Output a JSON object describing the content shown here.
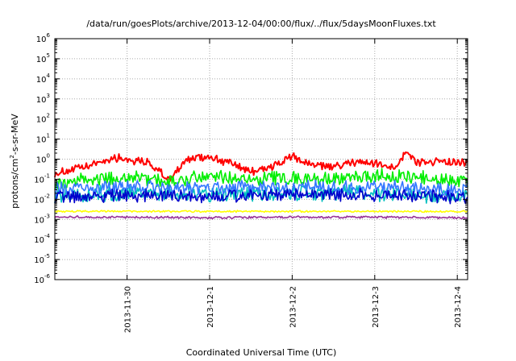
{
  "chart_data": {
    "type": "line",
    "title": "/data/run/goesPlots/archive/2013-12-04/00:00/flux/../flux/5daysMoonFluxes.txt",
    "xlabel": "Coordinated Universal Time (UTC)",
    "ylabel": {
      "base": "protons/cm",
      "sup": "2",
      "rest": "-s-sr-MeV"
    },
    "y_scale": "log",
    "ylim": [
      1e-06,
      1000000.0
    ],
    "y_ticks": [
      {
        "base": "10",
        "exp": "6"
      },
      {
        "base": "10",
        "exp": "5"
      },
      {
        "base": "10",
        "exp": "4"
      },
      {
        "base": "10",
        "exp": "3"
      },
      {
        "base": "10",
        "exp": "2"
      },
      {
        "base": "10",
        "exp": "1"
      },
      {
        "base": "10",
        "exp": "0"
      },
      {
        "base": "10",
        "exp": "-1"
      },
      {
        "base": "10",
        "exp": "-2"
      },
      {
        "base": "10",
        "exp": "-3"
      },
      {
        "base": "10",
        "exp": "-4"
      },
      {
        "base": "10",
        "exp": "-5"
      },
      {
        "base": "10",
        "exp": "-6"
      }
    ],
    "xlim": [
      "2013-11-29T03:00",
      "2013-12-04T03:00"
    ],
    "x_ticks": [
      "2013-11-30",
      "2013-12-1",
      "2013-12-2",
      "2013-12-3",
      "2013-12-4"
    ],
    "grid": "dotted",
    "series": [
      {
        "color": "#ff0000",
        "x": [
          "2013-11-29T03:00",
          "2013-11-29T12:00",
          "2013-11-29T20:00",
          "2013-11-30T00:00",
          "2013-11-30T06:00",
          "2013-11-30T12:00",
          "2013-11-30T18:00",
          "2013-12-01T00:00",
          "2013-12-01T06:00",
          "2013-12-01T12:00",
          "2013-12-01T18:00",
          "2013-12-02T00:00",
          "2013-12-02T06:00",
          "2013-12-02T12:00",
          "2013-12-02T18:00",
          "2013-12-03T00:00",
          "2013-12-03T06:00",
          "2013-12-03T09:00",
          "2013-12-03T12:00",
          "2013-12-03T18:00",
          "2013-12-04T03:00"
        ],
        "values": [
          0.2,
          0.4,
          1.2,
          1.0,
          0.7,
          0.1,
          1.0,
          1.4,
          0.6,
          0.25,
          0.4,
          1.3,
          0.5,
          0.4,
          0.7,
          0.6,
          0.4,
          2.5,
          0.7,
          0.8,
          0.6
        ]
      },
      {
        "color": "#00ee00",
        "x": [
          "2013-11-29T03:00",
          "2013-11-29T12:00",
          "2013-11-30T00:00",
          "2013-11-30T12:00",
          "2013-12-01T00:00",
          "2013-12-01T12:00",
          "2013-12-02T00:00",
          "2013-12-02T12:00",
          "2013-12-03T00:00",
          "2013-12-03T12:00",
          "2013-12-04T03:00"
        ],
        "values": [
          0.05,
          0.1,
          0.12,
          0.08,
          0.15,
          0.1,
          0.12,
          0.1,
          0.15,
          0.12,
          0.08
        ]
      },
      {
        "color": "#00c0c0",
        "x": [
          "2013-11-29T03:00",
          "2013-11-30T00:00",
          "2013-12-01T00:00",
          "2013-12-02T00:00",
          "2013-12-03T00:00",
          "2013-12-04T03:00"
        ],
        "values": [
          0.015,
          0.02,
          0.018,
          0.02,
          0.02,
          0.015
        ]
      },
      {
        "color": "#3377ff",
        "x": [
          "2013-11-29T03:00",
          "2013-11-30T00:00",
          "2013-12-01T00:00",
          "2013-12-02T00:00",
          "2013-12-03T00:00",
          "2013-12-04T03:00"
        ],
        "values": [
          0.03,
          0.04,
          0.035,
          0.04,
          0.04,
          0.03
        ]
      },
      {
        "color": "#0000cc",
        "x": [
          "2013-11-29T03:00",
          "2013-11-30T00:00",
          "2013-12-01T00:00",
          "2013-12-02T00:00",
          "2013-12-03T00:00",
          "2013-12-04T03:00"
        ],
        "values": [
          0.012,
          0.015,
          0.014,
          0.015,
          0.016,
          0.012
        ]
      },
      {
        "color": "#ffff00",
        "x": [
          "2013-11-29T03:00",
          "2013-11-30T00:00",
          "2013-12-01T00:00",
          "2013-12-02T00:00",
          "2013-12-03T00:00",
          "2013-12-04T03:00"
        ],
        "values": [
          0.0025,
          0.0025,
          0.0025,
          0.0025,
          0.0025,
          0.0025
        ]
      },
      {
        "color": "#993399",
        "x": [
          "2013-11-29T03:00",
          "2013-11-30T00:00",
          "2013-12-01T00:00",
          "2013-12-02T00:00",
          "2013-12-03T00:00",
          "2013-12-04T03:00"
        ],
        "values": [
          0.0013,
          0.0013,
          0.0012,
          0.0013,
          0.0013,
          0.0012
        ]
      }
    ]
  }
}
